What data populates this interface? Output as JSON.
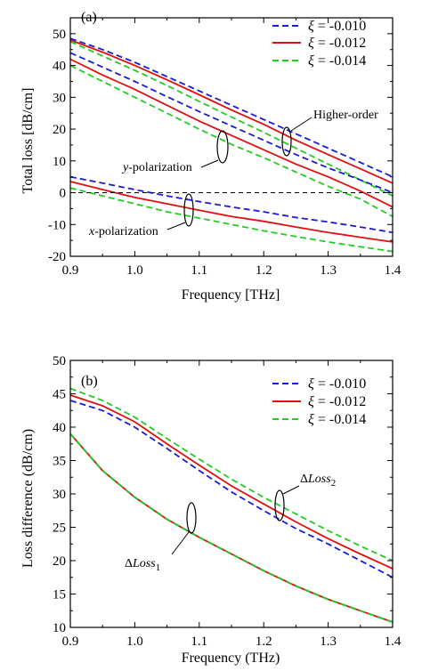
{
  "chart_data": [
    {
      "type": "line",
      "panel_label": "(a)",
      "title": "",
      "xlabel": "Frequency [THz]",
      "ylabel": "Total loss [dB/cm]",
      "xlim": [
        0.9,
        1.4
      ],
      "ylim": [
        -20,
        55
      ],
      "xticks": [
        "0.9",
        "1.0",
        "1.1",
        "1.2",
        "1.3",
        "1.4"
      ],
      "yticks": [
        "-20",
        "-10",
        "0",
        "10",
        "20",
        "30",
        "40",
        "50"
      ],
      "legend": {
        "position": "top-right",
        "symbol": "ξ",
        "entries": [
          {
            "label": "= -0.010",
            "color": "#1a1adb",
            "dash": "dashed"
          },
          {
            "label": "= -0.012",
            "color": "#e01010",
            "dash": "solid"
          },
          {
            "label": "= -0.014",
            "color": "#22cc22",
            "dash": "dashed"
          }
        ]
      },
      "x": [
        0.9,
        0.95,
        1.0,
        1.05,
        1.1,
        1.15,
        1.2,
        1.25,
        1.3,
        1.35,
        1.4
      ],
      "series": [
        {
          "group": "Higher-order",
          "legend_index": 0,
          "values": [
            48.5,
            45.0,
            41.0,
            36.5,
            32.0,
            27.5,
            23.0,
            18.5,
            14.0,
            9.5,
            5.0
          ]
        },
        {
          "group": "Higher-order",
          "legend_index": 1,
          "values": [
            48.0,
            44.2,
            40.0,
            35.5,
            30.8,
            26.0,
            21.5,
            16.5,
            12.0,
            7.5,
            3.0
          ]
        },
        {
          "group": "Higher-order",
          "legend_index": 2,
          "values": [
            47.5,
            43.0,
            38.5,
            33.7,
            28.7,
            23.8,
            19.0,
            14.0,
            9.0,
            4.0,
            -1.0
          ]
        },
        {
          "group": "y-polarization",
          "legend_index": 0,
          "values": [
            44.0,
            39.5,
            35.0,
            30.2,
            25.5,
            21.0,
            16.5,
            12.0,
            7.8,
            4.0,
            0.0
          ]
        },
        {
          "group": "y-polarization",
          "legend_index": 1,
          "values": [
            42.0,
            37.0,
            32.5,
            27.5,
            22.5,
            18.0,
            13.5,
            9.0,
            5.0,
            0.5,
            -4.5
          ]
        },
        {
          "group": "y-polarization",
          "legend_index": 2,
          "values": [
            40.0,
            35.0,
            30.0,
            25.0,
            20.0,
            15.2,
            11.0,
            6.5,
            2.0,
            -2.0,
            -7.5
          ]
        },
        {
          "group": "x-polarization",
          "legend_index": 0,
          "values": [
            5.0,
            3.0,
            1.0,
            -1.0,
            -2.8,
            -4.5,
            -6.0,
            -7.8,
            -9.2,
            -10.8,
            -12.5
          ]
        },
        {
          "group": "x-polarization",
          "legend_index": 1,
          "values": [
            3.5,
            1.0,
            -1.5,
            -3.5,
            -5.5,
            -7.5,
            -9.0,
            -10.8,
            -12.5,
            -14.0,
            -15.5
          ]
        },
        {
          "group": "x-polarization",
          "legend_index": 2,
          "values": [
            1.5,
            -1.0,
            -3.5,
            -6.0,
            -8.0,
            -10.0,
            -12.0,
            -13.8,
            -15.5,
            -17.0,
            -18.5
          ]
        }
      ],
      "reference_line": {
        "y": 0,
        "color": "#000000",
        "dash": "dashed"
      },
      "annotations": [
        {
          "text": "Higher-order",
          "kind": "plain"
        },
        {
          "prefix": "y",
          "text": "-polarization",
          "kind": "italic-prefix"
        },
        {
          "prefix": "x",
          "text": "-polarization",
          "kind": "italic-prefix"
        }
      ]
    },
    {
      "type": "line",
      "panel_label": "(b)",
      "title": "",
      "xlabel": "Frequency (THz)",
      "ylabel": "Loss difference (dB/cm)",
      "xlim": [
        0.9,
        1.4
      ],
      "ylim": [
        10,
        50
      ],
      "xticks": [
        "0.9",
        "1.0",
        "1.1",
        "1.2",
        "1.3",
        "1.4"
      ],
      "yticks": [
        "10",
        "15",
        "20",
        "25",
        "30",
        "35",
        "40",
        "45",
        "50"
      ],
      "legend": {
        "position": "top-right",
        "symbol": "ξ",
        "entries": [
          {
            "label": "= -0.010",
            "color": "#1a1adb",
            "dash": "dashed"
          },
          {
            "label": "= -0.012",
            "color": "#e01010",
            "dash": "solid"
          },
          {
            "label": "= -0.014",
            "color": "#22cc22",
            "dash": "dashed"
          }
        ]
      },
      "x": [
        0.9,
        0.95,
        1.0,
        1.05,
        1.1,
        1.15,
        1.2,
        1.25,
        1.3,
        1.35,
        1.4
      ],
      "series": [
        {
          "group": "Loss2",
          "legend_index": 0,
          "values": [
            44.0,
            42.5,
            40.0,
            36.8,
            33.5,
            30.3,
            27.5,
            24.8,
            22.5,
            20.0,
            17.5
          ]
        },
        {
          "group": "Loss2",
          "legend_index": 1,
          "values": [
            44.8,
            43.2,
            40.8,
            37.5,
            34.3,
            31.2,
            28.5,
            25.8,
            23.3,
            21.0,
            18.8
          ]
        },
        {
          "group": "Loss2",
          "legend_index": 2,
          "values": [
            45.8,
            44.0,
            41.5,
            38.3,
            35.2,
            32.2,
            29.5,
            27.0,
            24.5,
            22.2,
            20.0
          ]
        },
        {
          "group": "Loss1",
          "legend_index": 0,
          "values": [
            39.0,
            33.5,
            29.5,
            26.2,
            23.5,
            21.0,
            18.5,
            16.2,
            14.2,
            12.5,
            10.8
          ]
        },
        {
          "group": "Loss1",
          "legend_index": 1,
          "values": [
            39.0,
            33.5,
            29.5,
            26.2,
            23.5,
            21.0,
            18.5,
            16.2,
            14.2,
            12.5,
            10.8
          ]
        },
        {
          "group": "Loss1",
          "legend_index": 2,
          "values": [
            39.0,
            33.5,
            29.5,
            26.2,
            23.5,
            21.0,
            18.5,
            16.2,
            14.2,
            12.5,
            10.8
          ]
        }
      ],
      "annotations": [
        {
          "prefix": "Δ",
          "text": "Loss",
          "subscript": "2",
          "kind": "delta"
        },
        {
          "prefix": "Δ",
          "text": "Loss",
          "subscript": "1",
          "kind": "delta"
        }
      ]
    }
  ]
}
